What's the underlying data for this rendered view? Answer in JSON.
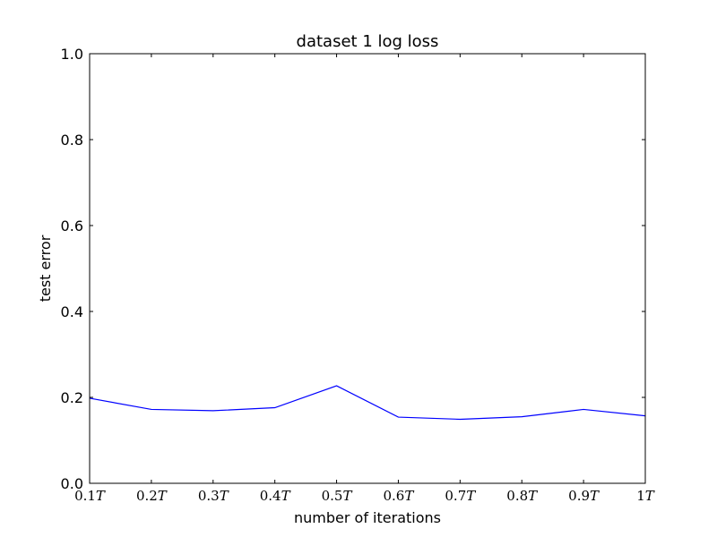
{
  "chart_data": {
    "type": "line",
    "title": "dataset 1 log loss",
    "xlabel": "number of iterations",
    "ylabel": "test error",
    "categories": [
      "0.1T",
      "0.2T",
      "0.3T",
      "0.4T",
      "0.5T",
      "0.6T",
      "0.7T",
      "0.8T",
      "0.9T",
      "1T"
    ],
    "x_tick_parts": [
      {
        "num": "0.1",
        "sym": "T"
      },
      {
        "num": "0.2",
        "sym": "T"
      },
      {
        "num": "0.3",
        "sym": "T"
      },
      {
        "num": "0.4",
        "sym": "T"
      },
      {
        "num": "0.5",
        "sym": "T"
      },
      {
        "num": "0.6",
        "sym": "T"
      },
      {
        "num": "0.7",
        "sym": "T"
      },
      {
        "num": "0.8",
        "sym": "T"
      },
      {
        "num": "0.9",
        "sym": "T"
      },
      {
        "num": "1",
        "sym": "T"
      }
    ],
    "series": [
      {
        "color": "#0000ff",
        "values": [
          0.198,
          0.172,
          0.169,
          0.176,
          0.227,
          0.154,
          0.149,
          0.155,
          0.172,
          0.157
        ]
      }
    ],
    "ylim": [
      0.0,
      1.0
    ],
    "yticks": [
      "0.0",
      "0.2",
      "0.4",
      "0.6",
      "0.8",
      "1.0"
    ],
    "grid": false,
    "legend": "none"
  }
}
